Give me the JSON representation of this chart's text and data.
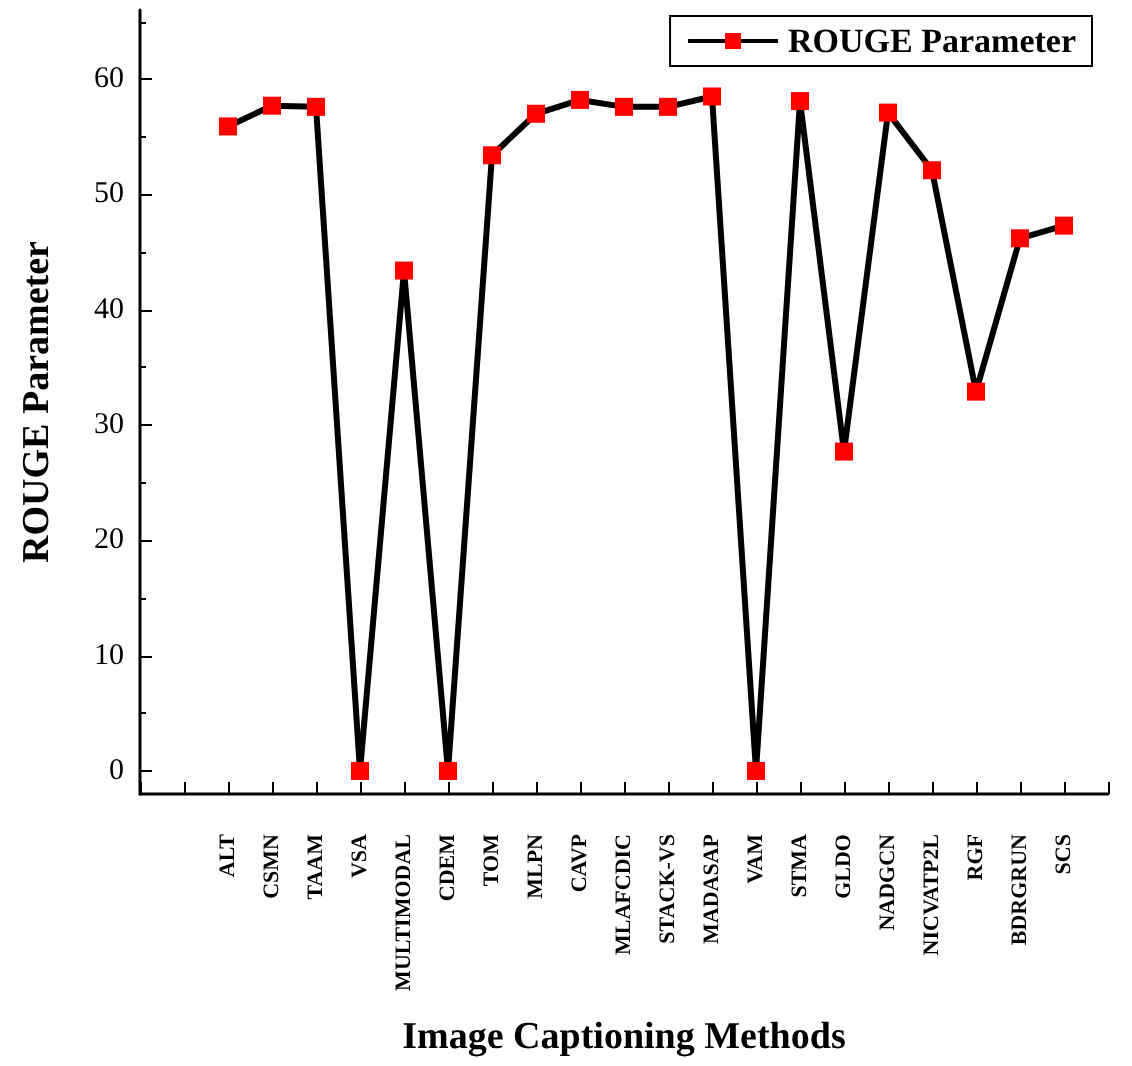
{
  "chart_data": {
    "type": "line",
    "xlabel": "Image Captioning Methods",
    "ylabel": "ROUGE Parameter",
    "categories": [
      null,
      null,
      "ALT",
      "CSMN",
      "TAAM",
      "VSA",
      "MULTIMODAL",
      "CDEM",
      "TOM",
      "MLPN",
      "CAVP",
      "MLAFCDIC",
      "STACK-VS",
      "MADASAP",
      "VAM",
      "STMA",
      "GLDO",
      "NADGCN",
      "NICVATP2L",
      "RGF",
      "BDRGRUN",
      "SCS",
      null
    ],
    "series": [
      {
        "name": "ROUGE Parameter",
        "color": "#ff0000",
        "values": [
          null,
          null,
          55.9,
          57.7,
          57.6,
          0,
          43.4,
          0,
          53.4,
          57.0,
          58.2,
          57.6,
          57.6,
          58.5,
          0,
          58.1,
          27.7,
          57.1,
          52.1,
          32.9,
          46.2,
          47.3,
          null
        ]
      }
    ],
    "ylim": [
      -2,
      66
    ],
    "yticks": [
      0,
      10,
      20,
      30,
      40,
      50,
      60
    ],
    "grid": false,
    "legend": "top right",
    "marker": "square",
    "line_style": "solid"
  }
}
